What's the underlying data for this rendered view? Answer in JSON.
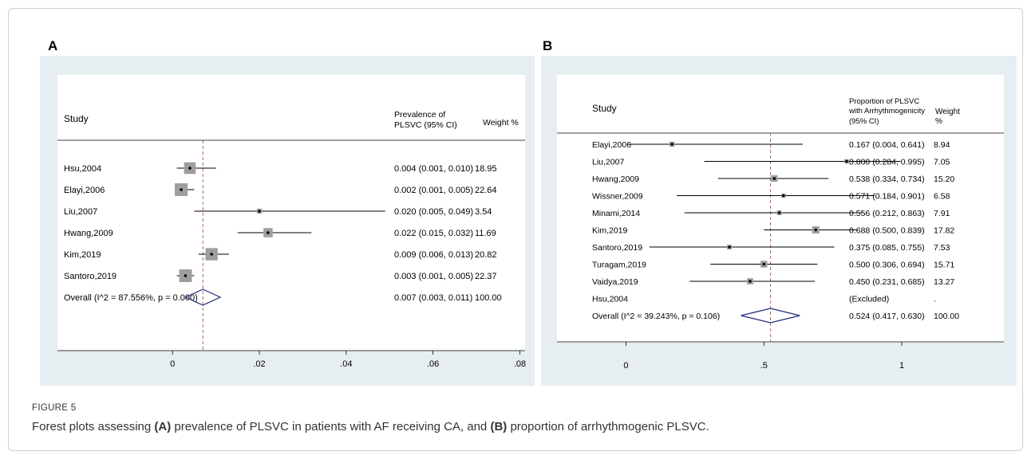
{
  "figure": {
    "label": "FIGURE 5",
    "caption_parts": [
      "Forest plots assessing ",
      "(A)",
      " prevalence of PLSVC in patients with AF receiving CA, and ",
      "(B)",
      " proportion of arrhythmogenic PLSVC."
    ]
  },
  "chart_data": [
    {
      "type": "forest",
      "panel": "A",
      "headers": {
        "study": "Study",
        "effect": [
          "Prevalence of",
          "PLSVC (95% CI)"
        ],
        "weight": [
          "Weight %"
        ]
      },
      "xticks": [
        0,
        0.02,
        0.04,
        0.06,
        0.08
      ],
      "xtick_labels": [
        "0",
        ".02",
        ".04",
        ".06",
        ".08"
      ],
      "xlim": [
        -0.0265,
        0.0812
      ],
      "reference_line": 0.007,
      "studies": [
        {
          "name": "Hsu,2004",
          "est": 0.004,
          "lo": 0.001,
          "hi": 0.01,
          "ci_text": "0.004 (0.001, 0.010)",
          "weight": 18.95
        },
        {
          "name": "Elayi,2006",
          "est": 0.002,
          "lo": 0.001,
          "hi": 0.005,
          "ci_text": "0.002 (0.001, 0.005)",
          "weight": 22.64
        },
        {
          "name": "Liu,2007",
          "est": 0.02,
          "lo": 0.005,
          "hi": 0.049,
          "ci_text": "0.020 (0.005, 0.049)",
          "weight": 3.54
        },
        {
          "name": "Hwang,2009",
          "est": 0.022,
          "lo": 0.015,
          "hi": 0.032,
          "ci_text": "0.022 (0.015, 0.032)",
          "weight": 11.69
        },
        {
          "name": "Kim,2019",
          "est": 0.009,
          "lo": 0.006,
          "hi": 0.013,
          "ci_text": "0.009 (0.006, 0.013)",
          "weight": 20.82
        },
        {
          "name": "Santoro,2019",
          "est": 0.003,
          "lo": 0.001,
          "hi": 0.005,
          "ci_text": "0.003 (0.001, 0.005)",
          "weight": 22.37
        }
      ],
      "overall": {
        "name": "Overall  (I^2 = 87.556%, p = 0.000)",
        "est": 0.007,
        "lo": 0.003,
        "hi": 0.011,
        "ci_text": "0.007 (0.003, 0.011)",
        "weight": "100.00"
      }
    },
    {
      "type": "forest",
      "panel": "B",
      "headers": {
        "study": "Study",
        "effect": [
          "Proportion of PLSVC",
          "with Arrhythmogenicity",
          "(95% CI)"
        ],
        "weight": [
          "Weight",
          "%"
        ]
      },
      "xticks": [
        0,
        0.5,
        1
      ],
      "xtick_labels": [
        "0",
        ".5",
        "1"
      ],
      "xlim": [
        -0.25,
        1.37
      ],
      "reference_line": 0.524,
      "studies": [
        {
          "name": "Elayi,2006",
          "est": 0.167,
          "lo": 0.004,
          "hi": 0.641,
          "ci_text": "0.167 (0.004, 0.641)",
          "weight": "8.94"
        },
        {
          "name": "Liu,2007",
          "est": 0.8,
          "lo": 0.284,
          "hi": 0.995,
          "ci_text": "0.800 (0.284, 0.995)",
          "weight": "7.05"
        },
        {
          "name": "Hwang,2009",
          "est": 0.538,
          "lo": 0.334,
          "hi": 0.734,
          "ci_text": "0.538 (0.334, 0.734)",
          "weight": "15.20"
        },
        {
          "name": "Wissner,2009",
          "est": 0.571,
          "lo": 0.184,
          "hi": 0.901,
          "ci_text": "0.571 (0.184, 0.901)",
          "weight": "6.58"
        },
        {
          "name": "Minami,2014",
          "est": 0.556,
          "lo": 0.212,
          "hi": 0.863,
          "ci_text": "0.556 (0.212, 0.863)",
          "weight": "7.91"
        },
        {
          "name": "Kim,2019",
          "est": 0.688,
          "lo": 0.5,
          "hi": 0.839,
          "ci_text": "0.688 (0.500, 0.839)",
          "weight": "17.82"
        },
        {
          "name": "Santoro,2019",
          "est": 0.375,
          "lo": 0.085,
          "hi": 0.755,
          "ci_text": "0.375 (0.085, 0.755)",
          "weight": "7.53"
        },
        {
          "name": "Turagam,2019",
          "est": 0.5,
          "lo": 0.306,
          "hi": 0.694,
          "ci_text": "0.500 (0.306, 0.694)",
          "weight": "15.71"
        },
        {
          "name": "Vaidya,2019",
          "est": 0.45,
          "lo": 0.231,
          "hi": 0.685,
          "ci_text": "0.450 (0.231, 0.685)",
          "weight": "13.27"
        },
        {
          "name": "Hsu,2004",
          "est": null,
          "lo": null,
          "hi": null,
          "ci_text": "(Excluded)",
          "weight": "."
        }
      ],
      "overall": {
        "name": "Overall  (I^2 = 39.243%, p = 0.106)",
        "est": 0.524,
        "lo": 0.417,
        "hi": 0.63,
        "ci_text": "0.524 (0.417, 0.630)",
        "weight": "100.00"
      }
    }
  ],
  "colors": {
    "outer_panel": "#e6eef2",
    "plot_bg": "#ffffff",
    "weight_box": "#9e9e9e",
    "reference_line": "#b06464",
    "diamond": "#1f2a78",
    "line": "#000000"
  }
}
